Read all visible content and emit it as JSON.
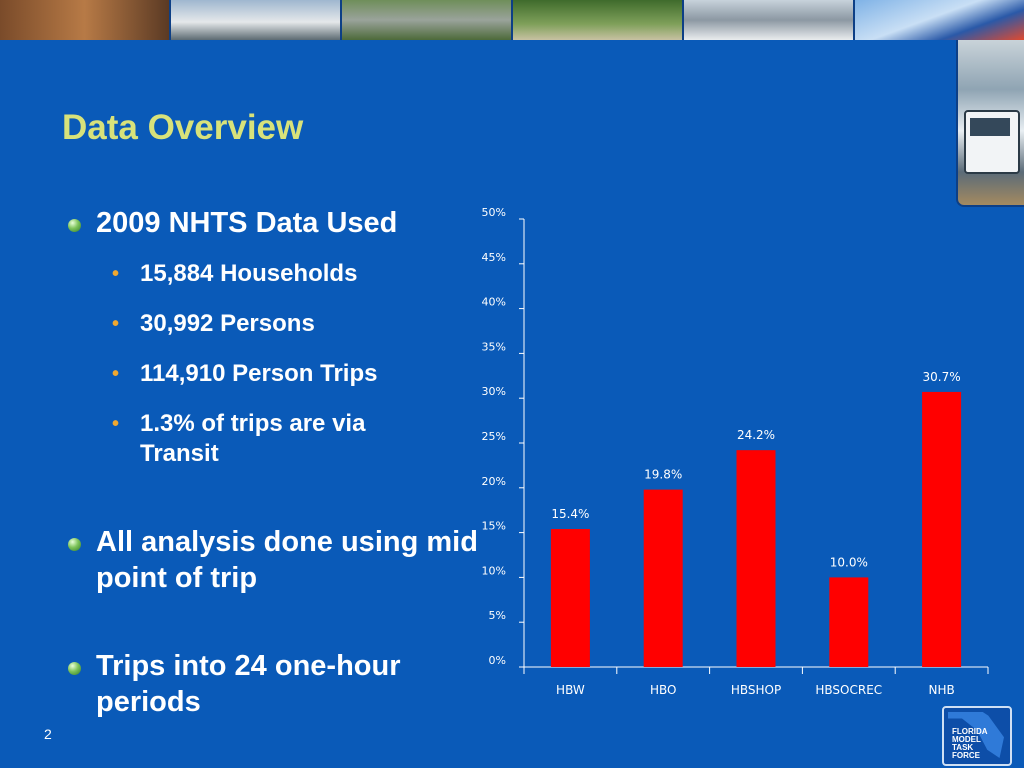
{
  "slide": {
    "title": "Data Overview",
    "page_number": "2",
    "logo_text": [
      "FLORIDA",
      "MODEL",
      "TASK",
      "FORCE"
    ]
  },
  "bullets": [
    {
      "text": "2009 NHTS Data Used",
      "sub": [
        "15,884 Households",
        "30,992 Persons",
        "114,910 Person Trips",
        "1.3% of trips are via Transit"
      ]
    },
    {
      "text": "All analysis done using mid point of trip",
      "sub": []
    },
    {
      "text": "Trips into 24 one-hour periods",
      "sub": []
    }
  ],
  "chart_data": {
    "type": "bar",
    "categories": [
      "HBW",
      "HBO",
      "HBSHOP",
      "HBSOCREC",
      "NHB"
    ],
    "values": [
      15.4,
      19.8,
      24.2,
      10.0,
      30.7
    ],
    "data_labels": [
      "15.4%",
      "19.8%",
      "24.2%",
      "10.0%",
      "30.7%"
    ],
    "y_ticks": [
      "0%",
      "5%",
      "10%",
      "15%",
      "20%",
      "25%",
      "30%",
      "35%",
      "40%",
      "45%",
      "50%"
    ],
    "ylim": [
      0,
      50
    ],
    "title": "",
    "xlabel": "",
    "ylabel": "",
    "grid": false,
    "bar_color": "#ff0000"
  }
}
